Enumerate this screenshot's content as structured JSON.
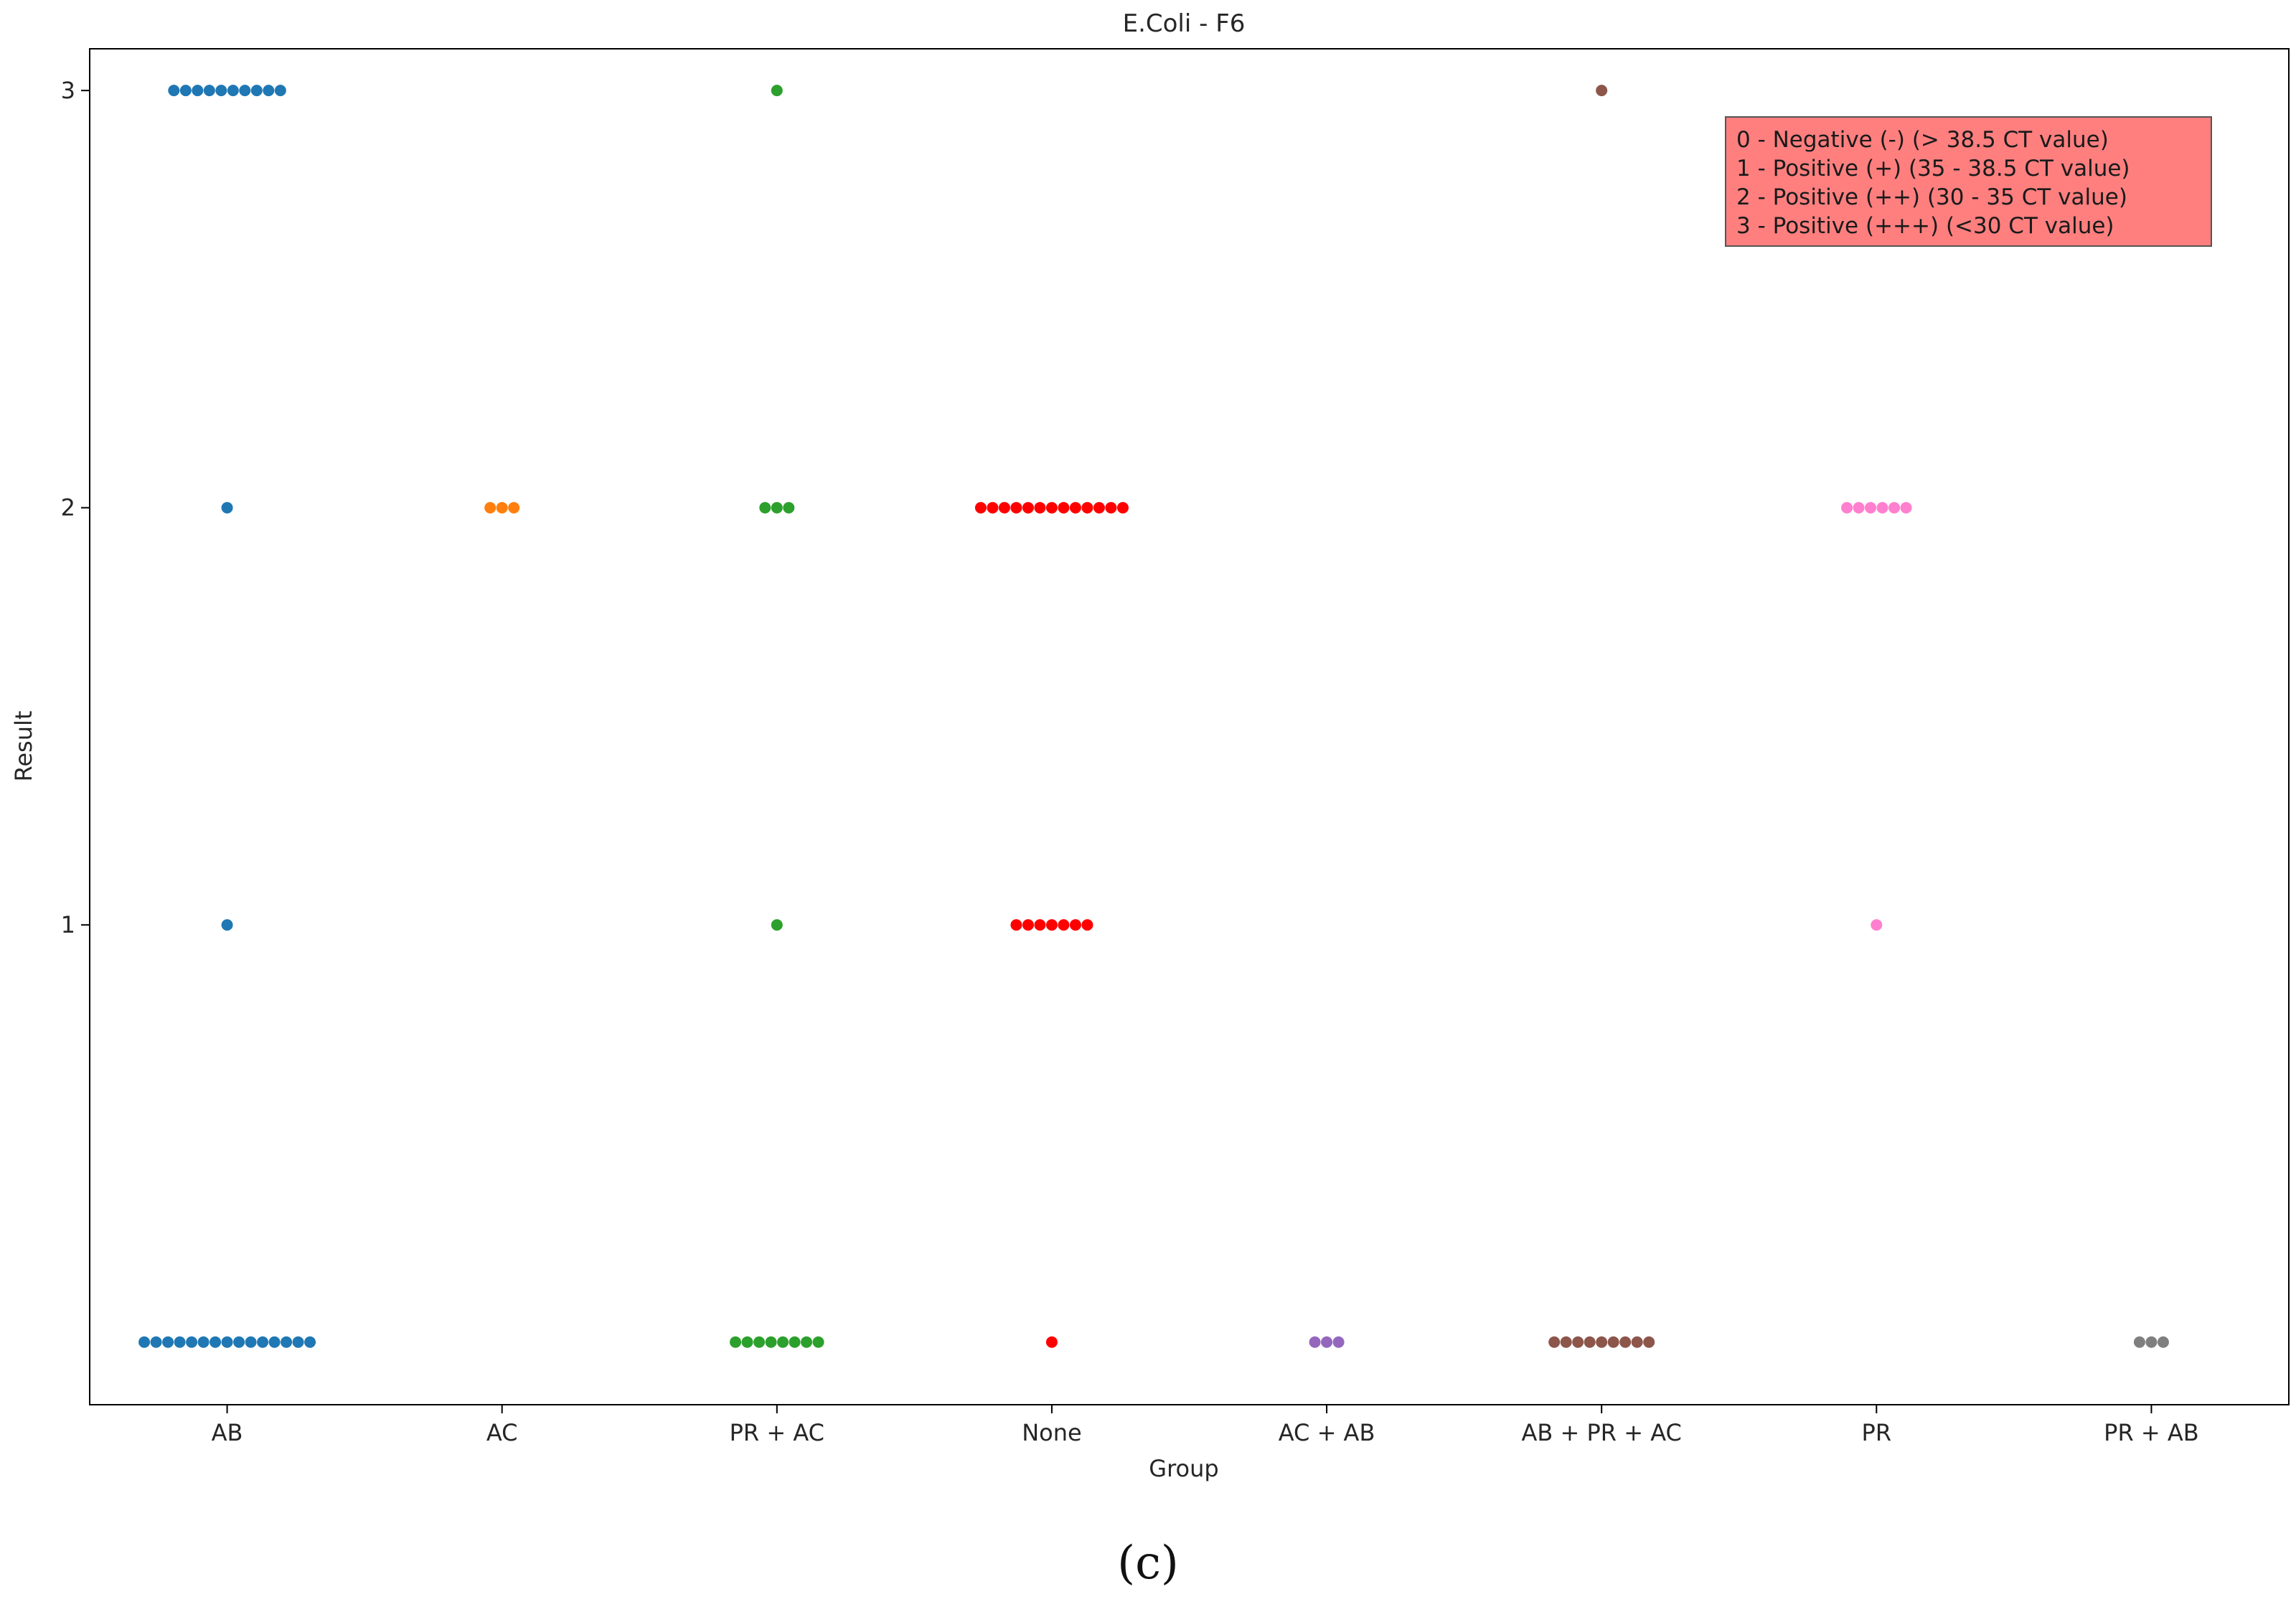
{
  "chart_data": {
    "type": "scatter",
    "title": "E.Coli - F6",
    "xlabel": "Group",
    "ylabel": "Result",
    "categories": [
      "AB",
      "AC",
      "PR + AC",
      "None",
      "AC + AB",
      "AB + PR + AC",
      "PR",
      "PR + AB"
    ],
    "yticks": [
      1,
      2,
      3
    ],
    "ylim": [
      -0.15,
      3.1
    ],
    "grid": false,
    "legend_position": "top-right",
    "annotation_box": {
      "color": "#ff7f7f",
      "lines": [
        "0 - Negative (-) (> 38.5 CT value)",
        "1 - Positive (+) (35 - 38.5 CT value)",
        "2 - Positive (++) (30 - 35 CT value)",
        "3 - Positive (+++) (<30 CT value)"
      ]
    },
    "series": [
      {
        "category": "AB",
        "color": "#1f77b4",
        "counts": {
          "0": 15,
          "1": 1,
          "2": 1,
          "3": 10
        }
      },
      {
        "category": "AC",
        "color": "#ff7f0e",
        "counts": {
          "2": 3
        }
      },
      {
        "category": "PR + AC",
        "color": "#2ca02c",
        "counts": {
          "0": 8,
          "1": 1,
          "2": 3,
          "3": 1
        }
      },
      {
        "category": "None",
        "color": "#ff0000",
        "counts": {
          "0": 1,
          "1": 7,
          "2": 13
        }
      },
      {
        "category": "AC + AB",
        "color": "#9467bd",
        "counts": {
          "0": 3
        }
      },
      {
        "category": "AB + PR + AC",
        "color": "#8c564b",
        "counts": {
          "0": 9,
          "3": 1
        }
      },
      {
        "category": "PR",
        "color": "#ff7fcf",
        "counts": {
          "1": 1,
          "2": 6
        }
      },
      {
        "category": "PR + AB",
        "color": "#7f7f7f",
        "counts": {
          "0": 3
        }
      }
    ]
  },
  "caption": "(c)"
}
